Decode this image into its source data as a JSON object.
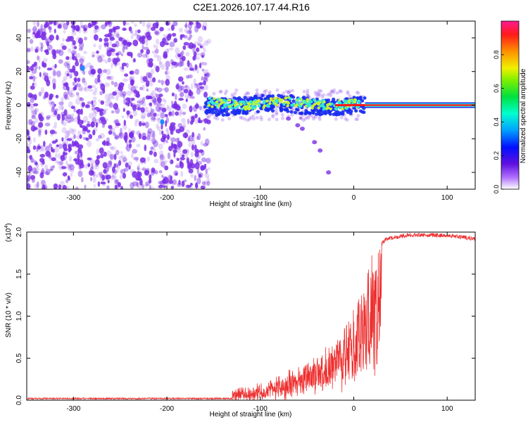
{
  "title": "C2E1.2026.107.17.44.R16",
  "colors": {
    "spectrogram_noise": "#7a2ee6",
    "signal_low": "#1a2cf0",
    "signal_mid": "#2ee8d8",
    "signal_high": "#c8f030",
    "carrier": "#ff1a1a",
    "snr_line": "#ee3030",
    "axis": "#000000"
  },
  "chart_data": [
    {
      "type": "heatmap",
      "title": "C2E1.2026.107.17.44.R16",
      "xlabel": "Height of straight line (km)",
      "ylabel": "Frequency (Hz)",
      "xlim": [
        -350,
        130
      ],
      "ylim": [
        -50,
        50
      ],
      "xticks": [
        "-300",
        "-200",
        "-100",
        "0",
        "100"
      ],
      "xtick_values": [
        -300,
        -200,
        -100,
        0,
        100
      ],
      "yticks": [
        "-40",
        "-20",
        "0",
        "20",
        "40"
      ],
      "ytick_values": [
        -40,
        -20,
        0,
        20,
        40
      ],
      "colorbar": {
        "label": "Normalized spectral amplitude",
        "range": [
          0,
          1
        ],
        "ticks": [
          "0.0",
          "0.2",
          "0.4",
          "0.6",
          "0.8"
        ],
        "tick_values": [
          0.0,
          0.2,
          0.4,
          0.6,
          0.8
        ]
      },
      "features": {
        "noise_region_km": [
          -350,
          -155
        ],
        "signal_band_km": [
          -160,
          12
        ],
        "carrier_line_km": [
          12,
          130
        ],
        "carrier_frequency_hz": 0,
        "signal_band_halfwidth_hz": 5,
        "secondary_trace": [
          {
            "x": -70,
            "y": -8
          },
          {
            "x": -60,
            "y": -12
          },
          {
            "x": -55,
            "y": -14
          },
          {
            "x": -42,
            "y": -22
          },
          {
            "x": -36,
            "y": -27
          },
          {
            "x": -27,
            "y": -40
          }
        ]
      }
    },
    {
      "type": "line",
      "series": [
        {
          "name": "SNR",
          "color": "#ee3030"
        }
      ],
      "xlabel": "Height of straight line (km)",
      "ylabel": "SNR (10 * v/v)",
      "scale_label": "(x10",
      "scale_exponent": "4",
      "scale_suffix": ")",
      "xlim": [
        -350,
        130
      ],
      "ylim": [
        0,
        2.0
      ],
      "xticks": [
        "-300",
        "-200",
        "-100",
        "0",
        "100"
      ],
      "xtick_values": [
        -300,
        -200,
        -100,
        0,
        100
      ],
      "yticks": [
        "0.0",
        "0.5",
        "1.0",
        "1.5",
        "2.0"
      ],
      "ytick_values": [
        0.0,
        0.5,
        1.0,
        1.5,
        2.0
      ],
      "envelope": {
        "x": [
          -350,
          -130,
          -120,
          -100,
          -80,
          -60,
          -40,
          -20,
          -5,
          5,
          15,
          25,
          35,
          60,
          100,
          130
        ],
        "y": [
          0.02,
          0.02,
          0.06,
          0.12,
          0.2,
          0.33,
          0.45,
          0.7,
          0.95,
          1.2,
          1.55,
          1.8,
          1.92,
          1.97,
          1.96,
          1.92
        ]
      }
    }
  ]
}
